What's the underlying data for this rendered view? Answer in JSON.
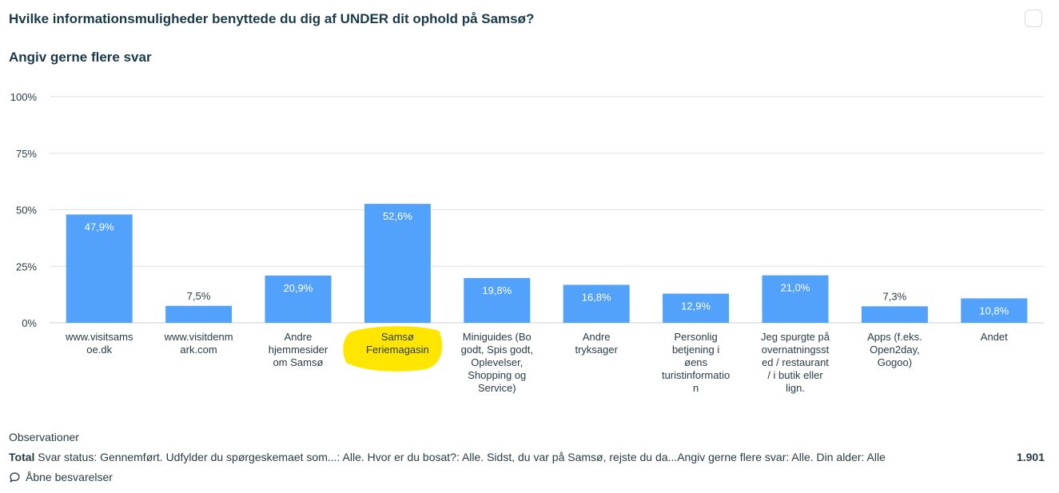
{
  "header": {
    "title": "Hvilke informationsmuligheder benyttede du dig af UNDER dit ophold på Samsø?",
    "subtitle": "Angiv gerne flere svar"
  },
  "chart_data": {
    "type": "bar",
    "categories": [
      [
        "www.visitsams",
        "oe.dk"
      ],
      [
        "www.visitdenm",
        "ark.com"
      ],
      [
        "Andre",
        "hjemmesider",
        "om Samsø"
      ],
      [
        "Samsø",
        "Feriemagasin"
      ],
      [
        "Miniguides (Bo",
        "godt, Spis godt,",
        "Oplevelser,",
        "Shopping og",
        "Service)"
      ],
      [
        "Andre",
        "tryksager"
      ],
      [
        "Personlig",
        "betjening i",
        "øens",
        "turistinformatio",
        "n"
      ],
      [
        "Jeg spurgte på",
        "overnatningsst",
        "ed / restaurant",
        "/ i butik eller",
        "lign."
      ],
      [
        "Apps (f.eks.",
        "Open2day,",
        "Gogoo)"
      ],
      [
        "Andet"
      ]
    ],
    "values": [
      47.9,
      7.5,
      20.9,
      52.6,
      19.8,
      16.8,
      12.9,
      21.0,
      7.3,
      10.8
    ],
    "value_labels": [
      "47,9%",
      "7,5%",
      "20,9%",
      "52,6%",
      "19,8%",
      "16,8%",
      "12,9%",
      "21,0%",
      "7,3%",
      "10,8%"
    ],
    "y_ticks": [
      "0%",
      "25%",
      "50%",
      "75%",
      "100%"
    ],
    "ylim": [
      0,
      100
    ],
    "grid": true,
    "bar_color": "#52a2fb",
    "highlight": {
      "category_index": 3,
      "color": "#ffe600"
    }
  },
  "footer": {
    "observations_label": "Observationer",
    "total_label": "Total",
    "total_text": "Svar status: Gennemført. Udfylder du spørgeskemaet som...: Alle. Hvor er du bosat?: Alle. Sidst, du var på Samsø, rejste du da...Angiv gerne flere svar: Alle. Din alder: Alle",
    "total_value": "1.901",
    "open_responses": "Åbne besvarelser",
    "open_icon": "speech-bubble-icon"
  }
}
